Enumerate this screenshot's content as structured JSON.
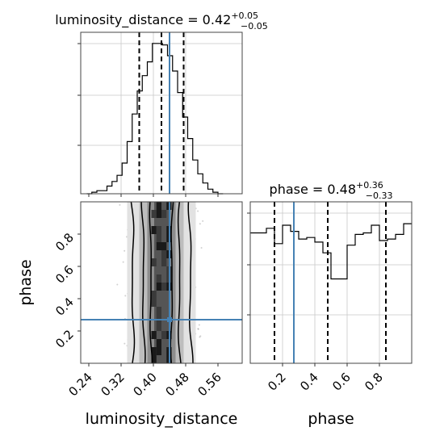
{
  "chart_data": [
    {
      "type": "histogram",
      "panel": "top-left",
      "parameter": "luminosity_distance",
      "title": {
        "main": "luminosity_distance = 0.42",
        "sup": "+0.05",
        "sub": "−0.05"
      },
      "x_range": [
        0.22,
        0.62
      ],
      "bins_edges": [
        0.23,
        0.24,
        0.25,
        0.26,
        0.27,
        0.28,
        0.29,
        0.3,
        0.31,
        0.32,
        0.33,
        0.34,
        0.35,
        0.36,
        0.37,
        0.38,
        0.39,
        0.4,
        0.41,
        0.42,
        0.43,
        0.44,
        0.45,
        0.46,
        0.47,
        0.48,
        0.49,
        0.5,
        0.51,
        0.52,
        0.53,
        0.54,
        0.55,
        0.56,
        0.57,
        0.58
      ],
      "counts": [
        0,
        1,
        2,
        2,
        5,
        8,
        12,
        20,
        34,
        52,
        67,
        77,
        86,
        98,
        98,
        97,
        90,
        80,
        66,
        50,
        36,
        22,
        13,
        7,
        3,
        1,
        0
      ],
      "counts_bin_start": 0.31,
      "y_max": 100,
      "quantile_lines": [
        0.365,
        0.42,
        0.475
      ],
      "truth_line": 0.44,
      "ygrid_fractions": [
        0.3,
        0.61,
        0.93
      ]
    },
    {
      "type": "histogram",
      "panel": "bottom-right",
      "parameter": "phase",
      "title": {
        "main": "phase = 0.48",
        "sup": "+0.36",
        "sub": "−0.33"
      },
      "x_range": [
        0.0,
        1.0
      ],
      "xticks": [
        "0.2",
        "0.4",
        "0.6",
        "0.8"
      ],
      "xtick_values": [
        0.2,
        0.4,
        0.6,
        0.8
      ],
      "xlabel": "phase",
      "bins_edges": [
        0.0,
        0.05,
        0.1,
        0.15,
        0.2,
        0.25,
        0.3,
        0.35,
        0.4,
        0.45,
        0.5,
        0.55,
        0.6,
        0.65,
        0.7,
        0.75,
        0.8,
        0.85,
        0.9,
        0.95,
        1.0
      ],
      "counts": [
        85,
        85,
        88,
        78,
        90,
        86,
        81,
        82,
        79,
        72,
        55,
        55,
        77,
        84,
        85,
        90,
        80,
        81,
        84,
        91
      ],
      "y_max": 100,
      "quantile_lines": [
        0.15,
        0.48,
        0.84
      ],
      "truth_line": 0.27,
      "ygrid_fractions": [
        0.3,
        0.61,
        0.93
      ]
    },
    {
      "type": "contour2d",
      "panel": "bottom-left",
      "x_parameter": "luminosity_distance",
      "y_parameter": "phase",
      "xlabel": "luminosity_distance",
      "ylabel": "phase",
      "x_range": [
        0.22,
        0.62
      ],
      "y_range": [
        0.0,
        1.0
      ],
      "xticks": [
        "0.24",
        "0.32",
        "0.40",
        "0.48",
        "0.56"
      ],
      "xtick_values": [
        0.24,
        0.32,
        0.4,
        0.48,
        0.56
      ],
      "yticks": [
        "0.2",
        "0.4",
        "0.6",
        "0.8"
      ],
      "ytick_values": [
        0.2,
        0.4,
        0.6,
        0.8
      ],
      "truth_point": [
        0.44,
        0.27
      ],
      "x_center": 0.42,
      "x_spread": 0.05,
      "contour_levels": [
        0.39,
        0.86,
        0.99
      ]
    }
  ]
}
